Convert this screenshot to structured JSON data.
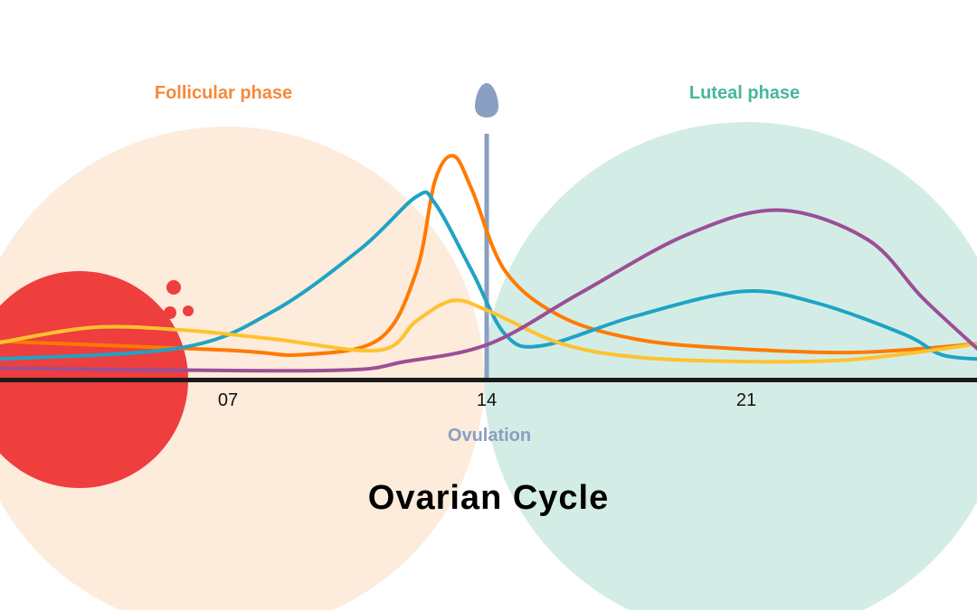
{
  "chart_data": {
    "type": "line",
    "title": "Ovarian Cycle",
    "xlabel": "",
    "ylabel": "",
    "x_ticks": [
      "07",
      "14",
      "21"
    ],
    "x_tick_values": [
      7,
      14,
      21
    ],
    "xlim": [
      0,
      27.3
    ],
    "ylim": [
      0,
      110
    ],
    "grid": false,
    "phases": [
      {
        "label": "Follicular phase",
        "color": "#f7893b",
        "fill": "#fdebdc"
      },
      {
        "label": "Luteal phase",
        "color": "#45b79b",
        "fill": "#d3ede6"
      },
      {
        "label": "Period",
        "color": "#ee3e3e"
      },
      {
        "label": "Ovulation",
        "color": "#8a9fc1",
        "day": 14
      }
    ],
    "series": [
      {
        "color": "#ff7a00",
        "points": [
          [
            0.8,
            17
          ],
          [
            7,
            13
          ],
          [
            9,
            11
          ],
          [
            11.1,
            18
          ],
          [
            12.1,
            48
          ],
          [
            12.6,
            88
          ],
          [
            13.1,
            99
          ],
          [
            13.6,
            84
          ],
          [
            14.5,
            48
          ],
          [
            16,
            28
          ],
          [
            18,
            18
          ],
          [
            20.4,
            14
          ],
          [
            24,
            12
          ],
          [
            27.3,
            16
          ]
        ]
      },
      {
        "color": "#1fa3c4",
        "points": [
          [
            0.8,
            9
          ],
          [
            5.7,
            14
          ],
          [
            8.2,
            30
          ],
          [
            10.6,
            58
          ],
          [
            12.1,
            81
          ],
          [
            12.6,
            78
          ],
          [
            13.6,
            48
          ],
          [
            14.5,
            20
          ],
          [
            15.5,
            15
          ],
          [
            18,
            28
          ],
          [
            20.9,
            39
          ],
          [
            22.9,
            34
          ],
          [
            25.3,
            20
          ],
          [
            26.3,
            11
          ],
          [
            27.3,
            9
          ]
        ]
      },
      {
        "color": "#ffc22e",
        "points": [
          [
            0.8,
            16
          ],
          [
            3.3,
            23
          ],
          [
            5.7,
            22
          ],
          [
            8.2,
            18
          ],
          [
            11.1,
            13
          ],
          [
            12.1,
            26
          ],
          [
            13.1,
            35
          ],
          [
            14.1,
            30
          ],
          [
            16,
            16
          ],
          [
            18,
            10
          ],
          [
            20.9,
            8
          ],
          [
            24,
            9
          ],
          [
            27.3,
            16
          ]
        ]
      },
      {
        "color": "#9b4f96",
        "points": [
          [
            0.8,
            5
          ],
          [
            9.6,
            4
          ],
          [
            11.8,
            8
          ],
          [
            14.1,
            16
          ],
          [
            16.5,
            38
          ],
          [
            19.4,
            64
          ],
          [
            21.9,
            75
          ],
          [
            24.3,
            62
          ],
          [
            25.8,
            36
          ],
          [
            27.3,
            12
          ]
        ]
      }
    ]
  }
}
